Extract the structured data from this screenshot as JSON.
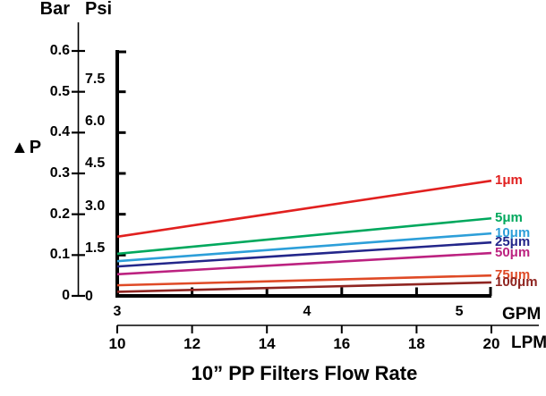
{
  "labels": {
    "bar_axis_title": "Bar",
    "psi_axis_title": "Psi",
    "dp_label": "▲P",
    "gpm_unit": "GPM",
    "lpm_unit": "LPM",
    "title": "10” PP Filters Flow Rate"
  },
  "chart_data": {
    "type": "line",
    "title": "10” PP Filters Flow Rate",
    "xlabel": "Flow Rate (GPM / LPM)",
    "ylabel": "▲P (Bar / Psi)",
    "grid": false,
    "legend_position": "right-of-line-ends",
    "x_axis": {
      "lpm": {
        "unit": "LPM",
        "range": [
          10,
          20
        ],
        "ticks": [
          {
            "label": "10",
            "value": 10
          },
          {
            "label": "12",
            "value": 12
          },
          {
            "label": "14",
            "value": 14
          },
          {
            "label": "16",
            "value": 16
          },
          {
            "label": "18",
            "value": 18
          },
          {
            "label": "20",
            "value": 20
          }
        ]
      },
      "gpm": {
        "unit": "GPM",
        "ticks": [
          {
            "label": "3",
            "at_lpm": 10.0
          },
          {
            "label": "4",
            "at_lpm": 15.07
          },
          {
            "label": "5",
            "at_lpm": 19.14
          }
        ]
      }
    },
    "y_axis": {
      "label": "▲P",
      "bar": {
        "unit": "Bar",
        "range": [
          0,
          0.6
        ],
        "ticks": [
          {
            "label": "0",
            "value": 0
          },
          {
            "label": "0.1",
            "value": 0.1
          },
          {
            "label": "0.2",
            "value": 0.2
          },
          {
            "label": "0.3",
            "value": 0.3
          },
          {
            "label": "0.4",
            "value": 0.4
          },
          {
            "label": "0.5",
            "value": 0.5
          },
          {
            "label": "0.6",
            "value": 0.6
          }
        ]
      },
      "psi": {
        "unit": "Psi",
        "bar_per_psi": 0.06895,
        "ticks": [
          {
            "label": "0",
            "psi": 0
          },
          {
            "label": "1.5",
            "psi": 1.5
          },
          {
            "label": "3.0",
            "psi": 3.0
          },
          {
            "label": "4.5",
            "psi": 4.5
          },
          {
            "label": "6.0",
            "psi": 6.0
          },
          {
            "label": "7.5",
            "psi": 7.5
          }
        ]
      }
    },
    "series": [
      {
        "name": "1μm",
        "color": "#e1201f",
        "x_lpm": [
          10,
          20
        ],
        "y_bar": [
          0.145,
          0.282
        ]
      },
      {
        "name": "5μm",
        "color": "#00a85d",
        "x_lpm": [
          10,
          20
        ],
        "y_bar": [
          0.103,
          0.19
        ]
      },
      {
        "name": "10μm",
        "color": "#2d9fd9",
        "x_lpm": [
          10,
          20
        ],
        "y_bar": [
          0.085,
          0.153
        ]
      },
      {
        "name": "25μm",
        "color": "#23268a",
        "x_lpm": [
          10,
          20
        ],
        "y_bar": [
          0.072,
          0.131
        ]
      },
      {
        "name": "50μm",
        "color": "#bc2280",
        "x_lpm": [
          10,
          20
        ],
        "y_bar": [
          0.053,
          0.105
        ]
      },
      {
        "name": "75μm",
        "color": "#df4a26",
        "x_lpm": [
          10,
          20
        ],
        "y_bar": [
          0.026,
          0.05
        ]
      },
      {
        "name": "100μm",
        "color": "#8f2521",
        "x_lpm": [
          10,
          20
        ],
        "y_bar": [
          0.01,
          0.033
        ]
      }
    ]
  }
}
